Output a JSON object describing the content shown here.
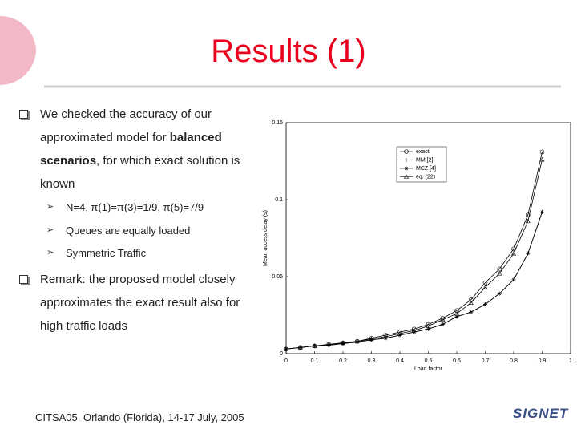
{
  "title": "Results (1)",
  "bullets": [
    {
      "runs": [
        {
          "text": "We checked the accuracy of our approximated model for ",
          "bold": false
        },
        {
          "text": "balanced scenarios",
          "bold": true
        },
        {
          "text": ", for which exact solution is known",
          "bold": false
        }
      ],
      "subbullets": [
        "N=4,  π(1)=π(3)=1/9, π(5)=7/9",
        "Queues are equally loaded",
        "Symmetric Traffic"
      ]
    },
    {
      "runs": [
        {
          "text": "Remark: the proposed model closely approximates the exact result also for high traffic loads",
          "bold": false
        }
      ]
    }
  ],
  "footer": "CITSA05, Orlando (Florida), 14-17 July, 2005",
  "logo": "SIGNET",
  "chart_data": {
    "type": "line",
    "x_label": "Load factor",
    "y_label": "Mean access delay (s)",
    "x": [
      0,
      0.05,
      0.1,
      0.15,
      0.2,
      0.25,
      0.3,
      0.35,
      0.4,
      0.45,
      0.5,
      0.55,
      0.6,
      0.65,
      0.7,
      0.75,
      0.8,
      0.85,
      0.9
    ],
    "series": [
      {
        "name": "exact",
        "color": "#000000",
        "marker": "circle",
        "values": [
          0.003,
          0.004,
          0.005,
          0.006,
          0.007,
          0.008,
          0.01,
          0.012,
          0.014,
          0.016,
          0.019,
          0.023,
          0.028,
          0.035,
          0.046,
          0.055,
          0.068,
          0.09,
          0.131
        ]
      },
      {
        "name": "MM [2]",
        "color": "#000000",
        "marker": "plus",
        "values": [
          0.003,
          0.004,
          0.005,
          0.0055,
          0.0065,
          0.0075,
          0.009,
          0.01,
          0.012,
          0.014,
          0.016,
          0.019,
          0.024,
          0.027,
          0.032,
          0.039,
          0.048,
          0.065,
          0.092
        ]
      },
      {
        "name": "MCZ [4]",
        "color": "#000000",
        "marker": "star",
        "values": [
          0.003,
          0.004,
          0.005,
          0.0055,
          0.0065,
          0.0075,
          0.009,
          0.01,
          0.012,
          0.014,
          0.016,
          0.019,
          0.024,
          0.027,
          0.032,
          0.039,
          0.048,
          0.065,
          0.092
        ]
      },
      {
        "name": "eq. (22)",
        "color": "#000000",
        "marker": "triangle",
        "values": [
          0.003,
          0.004,
          0.005,
          0.006,
          0.007,
          0.008,
          0.0095,
          0.011,
          0.013,
          0.015,
          0.018,
          0.022,
          0.026,
          0.033,
          0.043,
          0.052,
          0.065,
          0.086,
          0.126
        ]
      }
    ],
    "xlim": [
      0,
      1
    ],
    "xticks": [
      0,
      0.1,
      0.2,
      0.3,
      0.4,
      0.5,
      0.6,
      0.7,
      0.8,
      0.9,
      1
    ],
    "ylim": [
      0,
      0.15
    ],
    "yticks": [
      0,
      0.05,
      0.1,
      0.15
    ],
    "grid": false,
    "legend": "upper left"
  }
}
